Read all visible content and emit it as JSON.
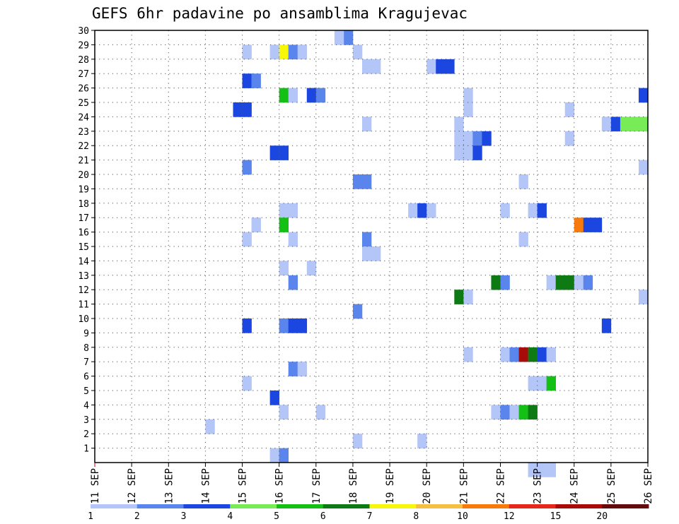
{
  "chart_data": {
    "type": "heatmap",
    "title": "GEFS 6hr padavine po ansamblima Kragujevac",
    "x_tick_labels": [
      "11 SEP",
      "12 SEP",
      "13 SEP",
      "14 SEP",
      "15 SEP",
      "16 SEP",
      "17 SEP",
      "18 SEP",
      "19 SEP",
      "20 SEP",
      "21 SEP",
      "22 SEP",
      "23 SEP",
      "24 SEP",
      "25 SEP",
      "26 SEP"
    ],
    "y_tick_labels": [
      "1",
      "2",
      "3",
      "4",
      "5",
      "6",
      "7",
      "8",
      "9",
      "10",
      "11",
      "12",
      "13",
      "14",
      "15",
      "16",
      "17",
      "18",
      "19",
      "20",
      "21",
      "22",
      "23",
      "24",
      "25",
      "26",
      "27",
      "28",
      "29",
      "30"
    ],
    "xlim": [
      "2016-09-11 00Z",
      "2016-09-26 00Z"
    ],
    "ylim": [
      0,
      30
    ],
    "grid": true,
    "legend": {
      "position": "bottom",
      "levels": [
        1,
        2,
        3,
        4,
        5,
        6,
        7,
        8,
        10,
        12,
        15,
        20
      ],
      "level_labels": [
        "1",
        "2",
        "3",
        "4",
        "5",
        "6",
        "7",
        "8",
        "10",
        "12",
        "15",
        "20"
      ],
      "colors": [
        "#b4c5f7",
        "#5a85ec",
        "#1b47e0",
        "#78ec56",
        "#14c014",
        "#0e7a14",
        "#f7f70a",
        "#f7bf42",
        "#f77a0a",
        "#e6281a",
        "#a80c0a",
        "#640a0a"
      ]
    },
    "cells_note": "each cell: [day (Sep), 6-hour block 0..3, member, color class 0..11]",
    "cells": [
      [
        17,
        3,
        30,
        1
      ],
      [
        17,
        2,
        30,
        0
      ],
      [
        15,
        0,
        29,
        0
      ],
      [
        15,
        3,
        29,
        0
      ],
      [
        16,
        0,
        29,
        6
      ],
      [
        16,
        1,
        29,
        1
      ],
      [
        16,
        2,
        29,
        0
      ],
      [
        18,
        0,
        29,
        0
      ],
      [
        18,
        1,
        28,
        0
      ],
      [
        18,
        2,
        28,
        0
      ],
      [
        20,
        0,
        28,
        0
      ],
      [
        20,
        1,
        28,
        2
      ],
      [
        20,
        2,
        28,
        2
      ],
      [
        15,
        0,
        27,
        2
      ],
      [
        15,
        1,
        27,
        1
      ],
      [
        16,
        0,
        26,
        4
      ],
      [
        16,
        1,
        26,
        0
      ],
      [
        16,
        3,
        26,
        2
      ],
      [
        17,
        0,
        26,
        1
      ],
      [
        21,
        0,
        26,
        0
      ],
      [
        25,
        3,
        26,
        2
      ],
      [
        14,
        3,
        25,
        2
      ],
      [
        15,
        0,
        25,
        2
      ],
      [
        21,
        0,
        25,
        0
      ],
      [
        23,
        3,
        25,
        0
      ],
      [
        18,
        1,
        24,
        0
      ],
      [
        20,
        3,
        24,
        0
      ],
      [
        24,
        3,
        24,
        0
      ],
      [
        25,
        0,
        24,
        2
      ],
      [
        25,
        1,
        24,
        3
      ],
      [
        25,
        2,
        24,
        3
      ],
      [
        25,
        3,
        24,
        3
      ],
      [
        20,
        3,
        23,
        0
      ],
      [
        21,
        0,
        23,
        0
      ],
      [
        21,
        1,
        23,
        1
      ],
      [
        21,
        2,
        23,
        2
      ],
      [
        23,
        3,
        23,
        0
      ],
      [
        15,
        3,
        22,
        2
      ],
      [
        16,
        0,
        22,
        2
      ],
      [
        20,
        3,
        22,
        0
      ],
      [
        21,
        0,
        22,
        0
      ],
      [
        21,
        1,
        22,
        2
      ],
      [
        15,
        0,
        21,
        1
      ],
      [
        25,
        3,
        21,
        0
      ],
      [
        18,
        0,
        20,
        1
      ],
      [
        18,
        1,
        20,
        1
      ],
      [
        22,
        2,
        20,
        0
      ],
      [
        19,
        2,
        18,
        0
      ],
      [
        19,
        3,
        18,
        2
      ],
      [
        20,
        0,
        18,
        0
      ],
      [
        16,
        0,
        18,
        0
      ],
      [
        16,
        1,
        18,
        0
      ],
      [
        22,
        0,
        18,
        0
      ],
      [
        22,
        3,
        18,
        0
      ],
      [
        23,
        0,
        18,
        2
      ],
      [
        15,
        1,
        17,
        0
      ],
      [
        16,
        0,
        17,
        4
      ],
      [
        24,
        0,
        17,
        8
      ],
      [
        24,
        1,
        17,
        2
      ],
      [
        24,
        2,
        17,
        2
      ],
      [
        15,
        0,
        16,
        0
      ],
      [
        16,
        1,
        16,
        0
      ],
      [
        18,
        1,
        16,
        1
      ],
      [
        22,
        2,
        16,
        0
      ],
      [
        18,
        1,
        15,
        0
      ],
      [
        18,
        2,
        15,
        0
      ],
      [
        16,
        0,
        14,
        0
      ],
      [
        16,
        3,
        14,
        0
      ],
      [
        16,
        1,
        13,
        1
      ],
      [
        21,
        3,
        13,
        5
      ],
      [
        22,
        0,
        13,
        1
      ],
      [
        23,
        1,
        13,
        0
      ],
      [
        23,
        2,
        13,
        5
      ],
      [
        23,
        3,
        13,
        5
      ],
      [
        24,
        0,
        13,
        0
      ],
      [
        24,
        1,
        13,
        1
      ],
      [
        20,
        3,
        12,
        5
      ],
      [
        21,
        0,
        12,
        0
      ],
      [
        25,
        3,
        12,
        0
      ],
      [
        18,
        0,
        11,
        1
      ],
      [
        15,
        0,
        10,
        2
      ],
      [
        16,
        0,
        10,
        1
      ],
      [
        16,
        1,
        10,
        2
      ],
      [
        16,
        2,
        10,
        2
      ],
      [
        24,
        3,
        10,
        2
      ],
      [
        21,
        0,
        8,
        0
      ],
      [
        22,
        0,
        8,
        0
      ],
      [
        22,
        1,
        8,
        1
      ],
      [
        22,
        2,
        8,
        10
      ],
      [
        22,
        3,
        8,
        5
      ],
      [
        23,
        0,
        8,
        2
      ],
      [
        23,
        1,
        8,
        0
      ],
      [
        16,
        1,
        7,
        1
      ],
      [
        16,
        2,
        7,
        0
      ],
      [
        15,
        0,
        6,
        0
      ],
      [
        22,
        3,
        6,
        0
      ],
      [
        23,
        0,
        6,
        0
      ],
      [
        23,
        1,
        6,
        4
      ],
      [
        15,
        3,
        5,
        2
      ],
      [
        16,
        0,
        4,
        0
      ],
      [
        17,
        0,
        4,
        0
      ],
      [
        21,
        3,
        4,
        0
      ],
      [
        22,
        0,
        4,
        1
      ],
      [
        22,
        1,
        4,
        0
      ],
      [
        22,
        2,
        4,
        4
      ],
      [
        22,
        3,
        4,
        5
      ],
      [
        14,
        0,
        3,
        0
      ],
      [
        18,
        0,
        2,
        0
      ],
      [
        19,
        3,
        2,
        0
      ],
      [
        15,
        3,
        1,
        0
      ],
      [
        16,
        0,
        1,
        1
      ],
      [
        22,
        3,
        0,
        0
      ],
      [
        23,
        0,
        0,
        0
      ],
      [
        23,
        1,
        0,
        0
      ]
    ]
  }
}
